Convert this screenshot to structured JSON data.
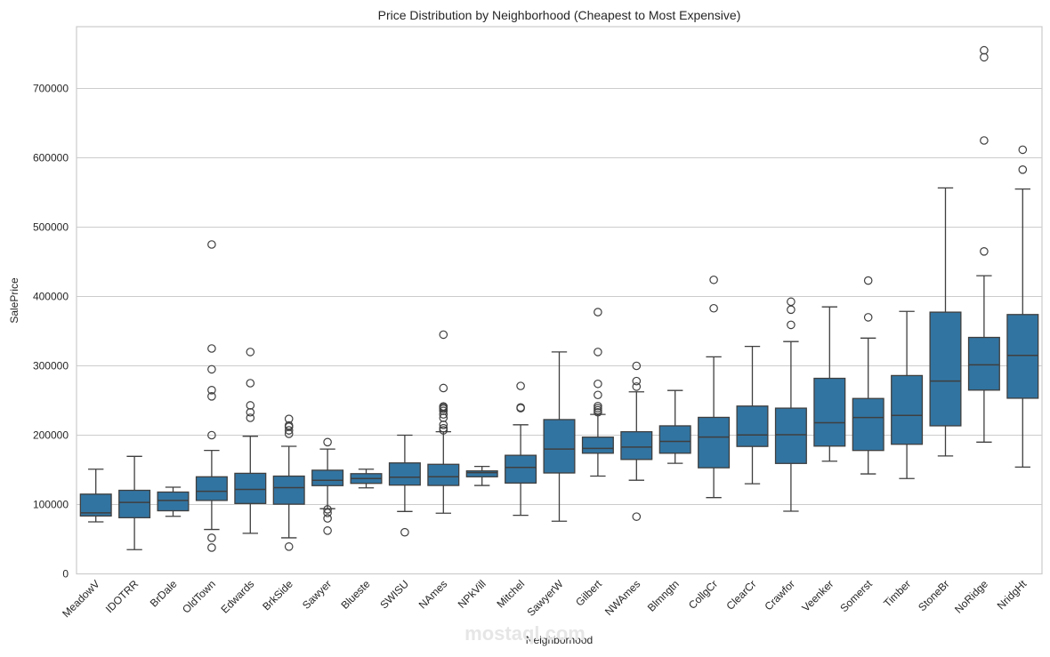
{
  "chart_data": {
    "type": "boxplot",
    "title": "Price Distribution by Neighborhood (Cheapest to Most Expensive)",
    "xlabel": "Neighborhood",
    "ylabel": "SalePrice",
    "ylim": [
      0,
      790000
    ],
    "yticks": [
      0,
      100000,
      200000,
      300000,
      400000,
      500000,
      600000,
      700000
    ],
    "grid": "y",
    "box_color": "#3274a1",
    "categories": [
      "MeadowV",
      "IDOTRR",
      "BrDale",
      "OldTown",
      "Edwards",
      "BrkSide",
      "Sawyer",
      "Blueste",
      "SWISU",
      "NAmes",
      "NPkVill",
      "Mitchel",
      "SawyerW",
      "Gilbert",
      "NWAmes",
      "Blmngtn",
      "CollgCr",
      "ClearCr",
      "Crawfor",
      "Veenker",
      "Somerst",
      "Timber",
      "StoneBr",
      "NoRidge",
      "NridgHt"
    ],
    "boxes": [
      {
        "name": "MeadowV",
        "whislo": 75000,
        "q1": 83500,
        "med": 88000,
        "q3": 115000,
        "whishi": 151000,
        "fliers": []
      },
      {
        "name": "IDOTRR",
        "whislo": 34900,
        "q1": 81000,
        "med": 103000,
        "q3": 120500,
        "whishi": 169500,
        "fliers": []
      },
      {
        "name": "BrDale",
        "whislo": 83000,
        "q1": 91000,
        "med": 106000,
        "q3": 118000,
        "whishi": 125000,
        "fliers": []
      },
      {
        "name": "OldTown",
        "whislo": 64000,
        "q1": 105900,
        "med": 119000,
        "q3": 140000,
        "whishi": 178000,
        "fliers": [
          37900,
          52000,
          200000,
          256000,
          265000,
          295000,
          325000,
          475000
        ]
      },
      {
        "name": "Edwards",
        "whislo": 58500,
        "q1": 101500,
        "med": 121750,
        "q3": 145000,
        "whishi": 198500,
        "fliers": [
          225000,
          233000,
          243000,
          275000,
          320000
        ]
      },
      {
        "name": "BrkSide",
        "whislo": 52000,
        "q1": 100500,
        "med": 124300,
        "q3": 141000,
        "whishi": 184000,
        "fliers": [
          39300,
          202000,
          207000,
          212000,
          214000,
          223500
        ]
      },
      {
        "name": "Sawyer",
        "whislo": 94000,
        "q1": 127250,
        "med": 135000,
        "q3": 149500,
        "whishi": 180000,
        "fliers": [
          62383,
          80000,
          88000,
          93000,
          190000
        ]
      },
      {
        "name": "Blueste",
        "whislo": 124000,
        "q1": 130500,
        "med": 137500,
        "q3": 144500,
        "whishi": 151000,
        "fliers": []
      },
      {
        "name": "SWISU",
        "whislo": 90000,
        "q1": 128000,
        "med": 139500,
        "q3": 160000,
        "whishi": 200000,
        "fliers": [
          60000
        ]
      },
      {
        "name": "NAmes",
        "whislo": 87500,
        "q1": 127500,
        "med": 140000,
        "q3": 158000,
        "whishi": 205000,
        "fliers": [
          207000,
          210000,
          215000,
          225000,
          230000,
          235000,
          238000,
          240000,
          241500,
          268000,
          345000
        ]
      },
      {
        "name": "NPkVill",
        "whislo": 127500,
        "q1": 140000,
        "med": 146000,
        "q3": 148500,
        "whishi": 155000,
        "fliers": []
      },
      {
        "name": "Mitchel",
        "whislo": 84500,
        "q1": 131000,
        "med": 153500,
        "q3": 171000,
        "whishi": 215000,
        "fliers": [
          239000,
          240000,
          271000
        ]
      },
      {
        "name": "SawyerW",
        "whislo": 76000,
        "q1": 145500,
        "med": 179900,
        "q3": 222500,
        "whishi": 320000,
        "fliers": []
      },
      {
        "name": "Gilbert",
        "whislo": 141000,
        "q1": 174000,
        "med": 181000,
        "q3": 197200,
        "whishi": 230000,
        "fliers": [
          233000,
          236000,
          239000,
          242000,
          258000,
          274000,
          320000,
          377500
        ]
      },
      {
        "name": "NWAmes",
        "whislo": 135000,
        "q1": 165000,
        "med": 182900,
        "q3": 205000,
        "whishi": 262500,
        "fliers": [
          82500,
          270000,
          278000,
          300000
        ]
      },
      {
        "name": "Blmngtn",
        "whislo": 159500,
        "q1": 174000,
        "med": 191000,
        "q3": 213500,
        "whishi": 264500,
        "fliers": []
      },
      {
        "name": "CollgCr",
        "whislo": 110000,
        "q1": 153000,
        "med": 197200,
        "q3": 225700,
        "whishi": 313000,
        "fliers": [
          383000,
          424000
        ]
      },
      {
        "name": "ClearCr",
        "whislo": 130000,
        "q1": 183750,
        "med": 200250,
        "q3": 242000,
        "whishi": 328000,
        "fliers": []
      },
      {
        "name": "Crawfor",
        "whislo": 90350,
        "q1": 159250,
        "med": 200624,
        "q3": 239000,
        "whishi": 335000,
        "fliers": [
          359100,
          381000,
          392500
        ]
      },
      {
        "name": "Veenker",
        "whislo": 162500,
        "q1": 184250,
        "med": 218000,
        "q3": 282000,
        "whishi": 385000,
        "fliers": []
      },
      {
        "name": "Somerst",
        "whislo": 144152,
        "q1": 177975,
        "med": 225500,
        "q3": 252919,
        "whishi": 340000,
        "fliers": [
          370000,
          423000
        ]
      },
      {
        "name": "Timber",
        "whislo": 137500,
        "q1": 186900,
        "med": 228475,
        "q3": 286000,
        "whishi": 378500,
        "fliers": []
      },
      {
        "name": "StoneBr",
        "whislo": 170000,
        "q1": 213500,
        "med": 278000,
        "q3": 377426,
        "whishi": 556581,
        "fliers": []
      },
      {
        "name": "NoRidge",
        "whislo": 190000,
        "q1": 265000,
        "med": 301500,
        "q3": 341000,
        "whishi": 430000,
        "fliers": [
          465000,
          625000,
          745000,
          755000
        ]
      },
      {
        "name": "NridgHt",
        "whislo": 154000,
        "q1": 253293,
        "med": 315000,
        "q3": 374000,
        "whishi": 555000,
        "fliers": [
          582933,
          611657
        ]
      }
    ],
    "annotations": [
      "mostaql.com watermark"
    ]
  },
  "watermark": {
    "text": "mostaql.com"
  }
}
